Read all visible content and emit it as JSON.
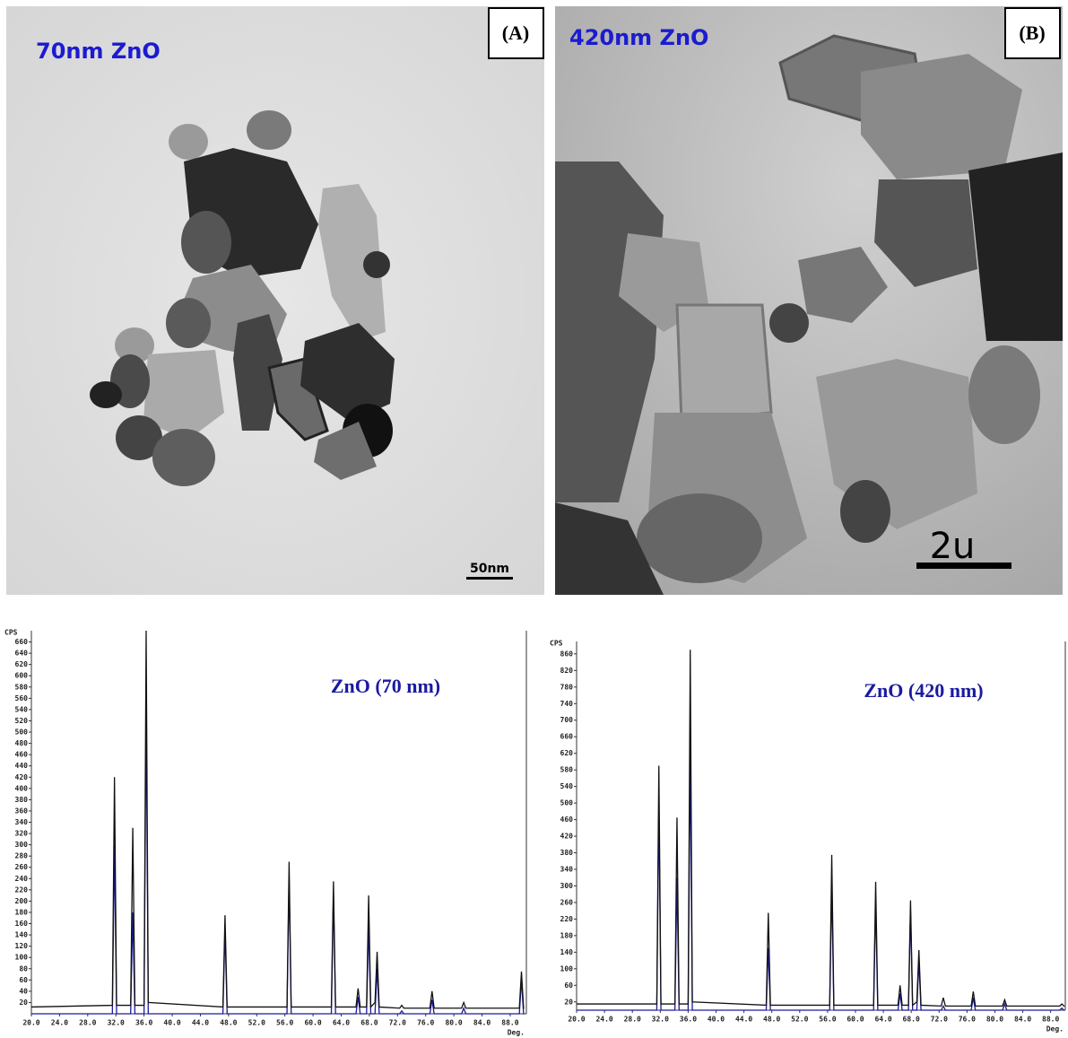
{
  "panels": [
    {
      "label": "(A)",
      "caption": "70nm ZnO",
      "scale_bar": "50nm"
    },
    {
      "label": "(B)",
      "caption": "420nm ZnO",
      "scale_bar": "2u"
    }
  ],
  "chart_data": [
    {
      "type": "line",
      "annotation": "ZnO (70 nm)",
      "y_label": "CPS",
      "x_label": "Deg.",
      "x": [
        20,
        31.5,
        31.8,
        32.1,
        34.1,
        34.4,
        34.7,
        36.0,
        36.3,
        36.6,
        47.2,
        47.5,
        47.8,
        56.3,
        56.6,
        56.9,
        62.6,
        62.9,
        63.2,
        66.1,
        66.4,
        66.7,
        67.6,
        67.9,
        68.2,
        68.8,
        69.1,
        69.4,
        72.3,
        72.6,
        72.9,
        76.6,
        76.9,
        77.2,
        81.1,
        81.4,
        81.7,
        89.3,
        89.6,
        89.9,
        90.0
      ],
      "series": [
        {
          "color": "#1a1aa0",
          "values": [
            0,
            0,
            300,
            0,
            0,
            180,
            0,
            0,
            550,
            0,
            0,
            150,
            0,
            0,
            240,
            0,
            0,
            210,
            0,
            0,
            30,
            0,
            0,
            160,
            0,
            0,
            80,
            0,
            0,
            5,
            0,
            0,
            25,
            0,
            0,
            10,
            0,
            0,
            60,
            0,
            0
          ]
        },
        {
          "color": "#111111",
          "values": [
            12,
            15,
            420,
            15,
            15,
            330,
            15,
            15,
            680,
            20,
            12,
            175,
            12,
            12,
            270,
            12,
            12,
            235,
            12,
            12,
            45,
            12,
            12,
            210,
            12,
            20,
            110,
            12,
            10,
            15,
            10,
            10,
            40,
            10,
            10,
            20,
            10,
            10,
            75,
            10,
            10
          ]
        }
      ],
      "xlim": [
        20,
        90.3
      ],
      "ylim": [
        0,
        680
      ],
      "xticks": [
        {
          "value": 20,
          "label": "20.0"
        },
        {
          "value": 24,
          "label": "24.0"
        },
        {
          "value": 28,
          "label": "28.0"
        },
        {
          "value": 32,
          "label": "32.0"
        },
        {
          "value": 36,
          "label": "36.0"
        },
        {
          "value": 40,
          "label": "40.0"
        },
        {
          "value": 44,
          "label": "44.0"
        },
        {
          "value": 48,
          "label": "48.0"
        },
        {
          "value": 52,
          "label": "52.0"
        },
        {
          "value": 56,
          "label": "56.0"
        },
        {
          "value": 60,
          "label": "60.0"
        },
        {
          "value": 64,
          "label": "64.0"
        },
        {
          "value": 68,
          "label": "68.0"
        },
        {
          "value": 72,
          "label": "72.0"
        },
        {
          "value": 76,
          "label": "76.0"
        },
        {
          "value": 80,
          "label": "80.0"
        },
        {
          "value": 84,
          "label": "84.0"
        },
        {
          "value": 88,
          "label": "88.0"
        }
      ],
      "yticks": [
        20,
        40,
        60,
        80,
        100,
        120,
        140,
        160,
        180,
        200,
        220,
        240,
        260,
        280,
        300,
        320,
        340,
        360,
        380,
        400,
        420,
        440,
        460,
        480,
        500,
        520,
        540,
        560,
        580,
        600,
        620,
        640,
        660
      ]
    },
    {
      "type": "line",
      "annotation": "ZnO (420 nm)",
      "y_label": "CPS",
      "x_label": "Deg.",
      "x": [
        20,
        31.5,
        31.8,
        32.1,
        34.1,
        34.4,
        34.7,
        36.0,
        36.3,
        36.6,
        47.2,
        47.5,
        47.8,
        56.3,
        56.6,
        56.9,
        62.6,
        62.9,
        63.2,
        66.1,
        66.4,
        66.7,
        67.6,
        67.9,
        68.2,
        68.8,
        69.1,
        69.4,
        72.3,
        72.6,
        72.9,
        76.6,
        76.9,
        77.2,
        81.1,
        81.4,
        81.7,
        89.3,
        89.6,
        89.9,
        90.0
      ],
      "series": [
        {
          "color": "#1a1aa0",
          "values": [
            0,
            0,
            500,
            0,
            0,
            320,
            0,
            0,
            630,
            0,
            0,
            150,
            0,
            0,
            300,
            0,
            0,
            260,
            0,
            0,
            40,
            0,
            0,
            240,
            0,
            0,
            120,
            0,
            0,
            10,
            0,
            0,
            30,
            0,
            0,
            15,
            0,
            0,
            5,
            0,
            0
          ]
        },
        {
          "color": "#111111",
          "values": [
            15,
            15,
            590,
            15,
            15,
            465,
            15,
            15,
            870,
            20,
            12,
            235,
            12,
            12,
            375,
            12,
            12,
            310,
            12,
            12,
            60,
            12,
            12,
            265,
            12,
            20,
            145,
            12,
            10,
            30,
            10,
            10,
            45,
            10,
            10,
            25,
            10,
            10,
            15,
            10,
            10
          ]
        }
      ],
      "xlim": [
        20,
        90.1
      ],
      "ylim": [
        0,
        890
      ],
      "xticks": [
        {
          "value": 20,
          "label": "20.0"
        },
        {
          "value": 24,
          "label": "24.0"
        },
        {
          "value": 28,
          "label": "28.0"
        },
        {
          "value": 32,
          "label": "32.0"
        },
        {
          "value": 36,
          "label": "36.0"
        },
        {
          "value": 40,
          "label": "40.0"
        },
        {
          "value": 44,
          "label": "44.0"
        },
        {
          "value": 48,
          "label": "48.0"
        },
        {
          "value": 52,
          "label": "52.0"
        },
        {
          "value": 56,
          "label": "56.0"
        },
        {
          "value": 60,
          "label": "60.0"
        },
        {
          "value": 64,
          "label": "64.0"
        },
        {
          "value": 68,
          "label": "68.0"
        },
        {
          "value": 72,
          "label": "72.0"
        },
        {
          "value": 76,
          "label": "76.0"
        },
        {
          "value": 80,
          "label": "80.0"
        },
        {
          "value": 84,
          "label": "84.0"
        },
        {
          "value": 88,
          "label": "88.0"
        }
      ],
      "yticks": [
        20,
        60,
        100,
        140,
        180,
        220,
        260,
        300,
        340,
        380,
        420,
        460,
        500,
        540,
        580,
        620,
        660,
        700,
        740,
        780,
        820,
        860
      ]
    }
  ]
}
